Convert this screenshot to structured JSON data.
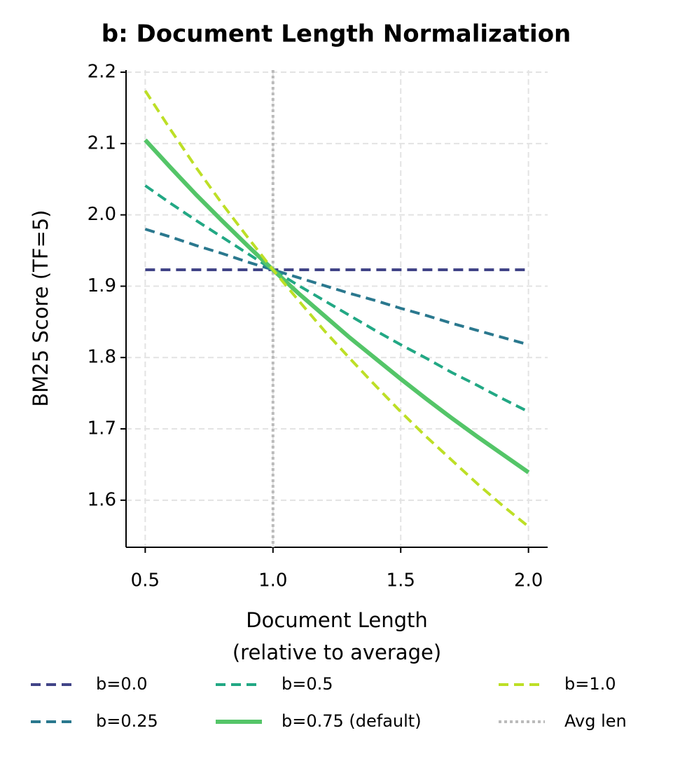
{
  "chart_data": {
    "type": "line",
    "title": "b: Document Length Normalization",
    "xlabel": [
      "Document Length",
      "(relative to average)"
    ],
    "ylabel": "BM25 Score (TF=5)",
    "x": [
      0.5,
      0.6,
      0.7,
      0.8,
      0.9,
      1.0,
      1.1,
      1.2,
      1.3,
      1.4,
      1.5,
      1.6,
      1.7,
      1.8,
      1.9,
      2.0
    ],
    "series": [
      {
        "name": "b=0.0",
        "color": "#414487",
        "style": "dashed",
        "values": [
          1.923,
          1.923,
          1.923,
          1.923,
          1.923,
          1.923,
          1.923,
          1.923,
          1.923,
          1.923,
          1.923,
          1.923,
          1.923,
          1.923,
          1.923,
          1.923
        ]
      },
      {
        "name": "b=0.25",
        "color": "#2a788e",
        "style": "dashed",
        "values": [
          1.98,
          1.969,
          1.957,
          1.946,
          1.934,
          1.923,
          1.912,
          1.901,
          1.89,
          1.88,
          1.869,
          1.859,
          1.848,
          1.838,
          1.828,
          1.818
        ]
      },
      {
        "name": "b=0.5",
        "color": "#22a884",
        "style": "dashed",
        "values": [
          2.041,
          2.016,
          1.992,
          1.969,
          1.946,
          1.923,
          1.901,
          1.88,
          1.859,
          1.838,
          1.818,
          1.799,
          1.779,
          1.761,
          1.742,
          1.724
        ]
      },
      {
        "name": "b=0.75 (default)",
        "color": "#54c568",
        "style": "solid",
        "values": [
          2.105,
          2.066,
          2.028,
          1.992,
          1.957,
          1.923,
          1.89,
          1.859,
          1.828,
          1.799,
          1.77,
          1.742,
          1.715,
          1.689,
          1.664,
          1.639
        ]
      },
      {
        "name": "b=1.0",
        "color": "#bddf26",
        "style": "dashed",
        "values": [
          2.174,
          2.119,
          2.066,
          2.016,
          1.969,
          1.923,
          1.88,
          1.838,
          1.799,
          1.761,
          1.724,
          1.689,
          1.656,
          1.623,
          1.592,
          1.563
        ]
      }
    ],
    "vline": {
      "name": "Avg len",
      "x": 1.0,
      "color": "#bbbbbb",
      "style": "dotted"
    },
    "xlim": [
      0.425,
      2.075
    ],
    "ylim": [
      1.534,
      2.203
    ],
    "xticks": [
      {
        "value": 0.5,
        "label": "0.5"
      },
      {
        "value": 1.0,
        "label": "1.0"
      },
      {
        "value": 1.5,
        "label": "1.5"
      },
      {
        "value": 2.0,
        "label": "2.0"
      }
    ],
    "yticks": [
      1.6,
      1.7,
      1.8,
      1.9,
      {
        "value": 2.0,
        "label": "2.0"
      },
      2.1,
      2.2
    ],
    "grid": true,
    "legend": "bottom"
  }
}
